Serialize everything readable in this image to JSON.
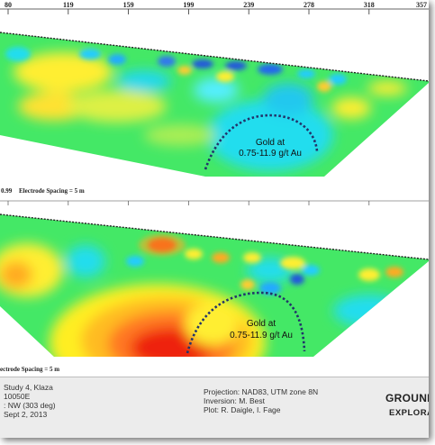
{
  "ruler": {
    "ticks": [
      "80",
      "119",
      "159",
      "199",
      "239",
      "278",
      "318",
      "357"
    ]
  },
  "section_top": {
    "label_left": "0.99",
    "label_spacing": "Electrode Spacing = 5 m",
    "annotation_line1": "Gold at",
    "annotation_line2": "0.75-11.9 g/t  Au"
  },
  "section_bottom": {
    "label_spacing": "ectrode Spacing = 5 m",
    "annotation_line1": "Gold at",
    "annotation_line2": "0.75-11.9 g/t  Au"
  },
  "info": {
    "left_lines": [
      "Study 4, Klaza",
      "10050E",
      ":  NW (303 deg)",
      "Sept 2, 2013"
    ],
    "right_lines": [
      "Projection: NAD83, UTM zone 8N",
      "Inversion: M. Best",
      "Plot: R. Daigle, I. Fage"
    ],
    "logo_main": "GROUNDTI",
    "logo_sub": "EXPLORA"
  },
  "colors": {
    "cyan": "#22ddee",
    "green": "#33ee55",
    "yellow": "#ffee22",
    "orange": "#ffaa22",
    "red": "#ee2211",
    "blue": "#2255dd",
    "dotted": "#22336a"
  }
}
